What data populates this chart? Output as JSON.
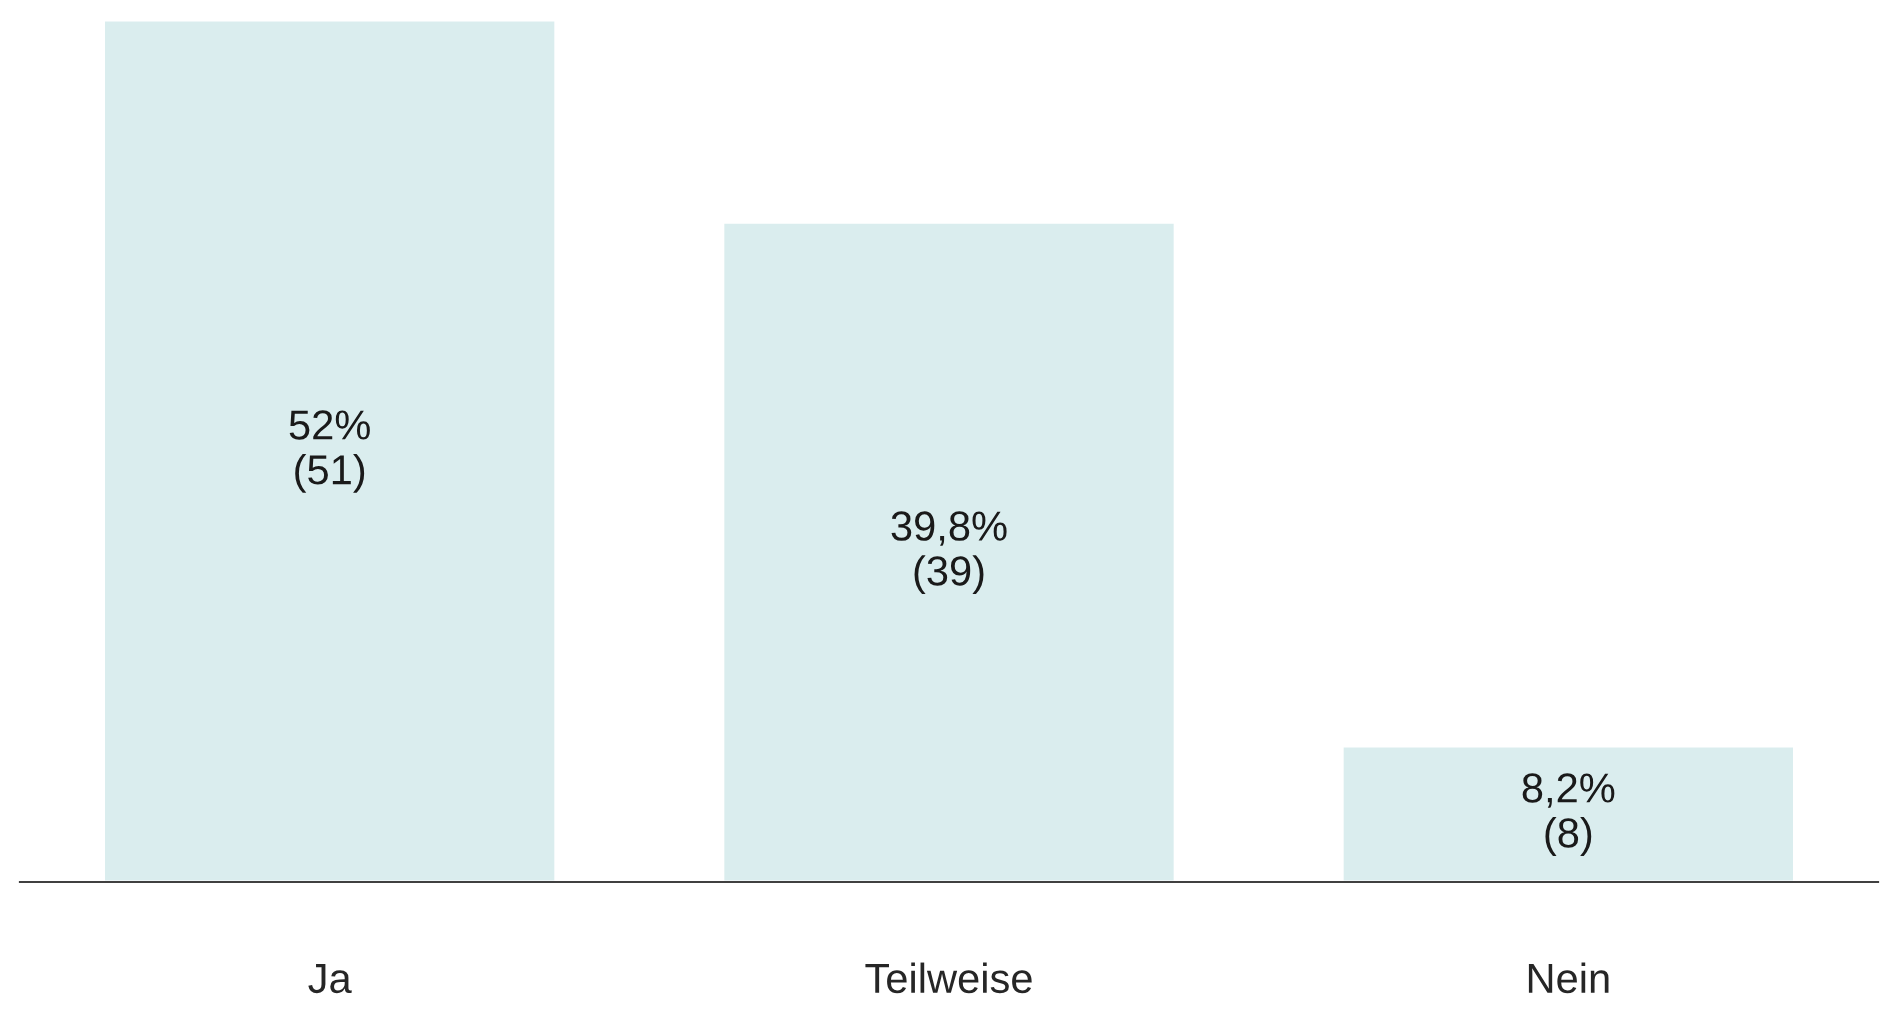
{
  "chart_data": {
    "type": "bar",
    "categories": [
      "Ja",
      "Teilweise",
      "Nein"
    ],
    "values": [
      52,
      39.8,
      8.2
    ],
    "value_labels": [
      "52%\n(51)",
      "39,8%\n(39)",
      "8,2%\n(8)"
    ],
    "color": "#daedee",
    "grid": false,
    "legend": false
  }
}
